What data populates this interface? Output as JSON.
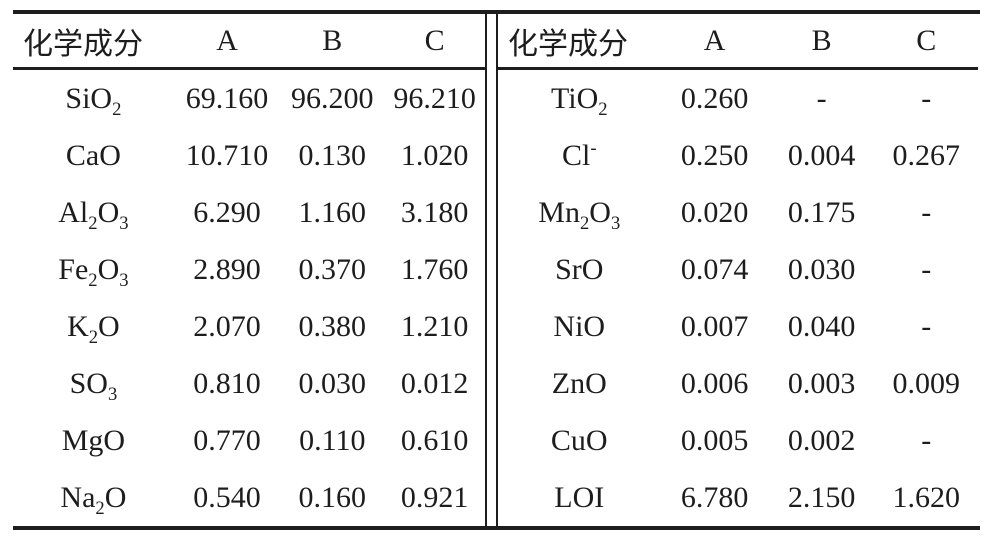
{
  "page": {
    "background": "#ffffff",
    "text_color": "#1d1d1d",
    "rule_color": "#1d1d1d"
  },
  "table": {
    "left": {
      "header": {
        "component": "化学成分",
        "col_a": "A",
        "col_b": "B",
        "col_c": "C"
      },
      "rows": [
        {
          "component_html": "SiO<sub>2</sub>",
          "a": "69.160",
          "b": "96.200",
          "c": "96.210"
        },
        {
          "component_html": "CaO",
          "a": "10.710",
          "b": "0.130",
          "c": "1.020"
        },
        {
          "component_html": "Al<sub>2</sub>O<sub>3</sub>",
          "a": "6.290",
          "b": "1.160",
          "c": "3.180"
        },
        {
          "component_html": "Fe<sub>2</sub>O<sub>3</sub>",
          "a": "2.890",
          "b": "0.370",
          "c": "1.760"
        },
        {
          "component_html": "K<sub>2</sub>O",
          "a": "2.070",
          "b": "0.380",
          "c": "1.210"
        },
        {
          "component_html": "SO<sub>3</sub>",
          "a": "0.810",
          "b": "0.030",
          "c": "0.012"
        },
        {
          "component_html": "MgO",
          "a": "0.770",
          "b": "0.110",
          "c": "0.610"
        },
        {
          "component_html": "Na<sub>2</sub>O",
          "a": "0.540",
          "b": "0.160",
          "c": "0.921"
        }
      ]
    },
    "right": {
      "header": {
        "component": "化学成分",
        "col_a": "A",
        "col_b": "B",
        "col_c": "C"
      },
      "rows": [
        {
          "component_html": "TiO<sub>2</sub>",
          "a": "0.260",
          "b": "-",
          "c": "-"
        },
        {
          "component_html": "Cl<sup>-</sup>",
          "a": "0.250",
          "b": "0.004",
          "c": "0.267"
        },
        {
          "component_html": "Mn<sub>2</sub>O<sub>3</sub>",
          "a": "0.020",
          "b": "0.175",
          "c": "-"
        },
        {
          "component_html": "SrO",
          "a": "0.074",
          "b": "0.030",
          "c": "-"
        },
        {
          "component_html": "NiO",
          "a": "0.007",
          "b": "0.040",
          "c": "-"
        },
        {
          "component_html": "ZnO",
          "a": "0.006",
          "b": "0.003",
          "c": "0.009"
        },
        {
          "component_html": "CuO",
          "a": "0.005",
          "b": "0.002",
          "c": "-"
        },
        {
          "component_html": "LOI",
          "a": "6.780",
          "b": "2.150",
          "c": "1.620"
        }
      ]
    }
  }
}
